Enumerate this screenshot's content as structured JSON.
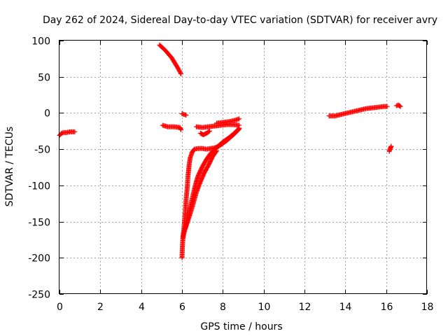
{
  "chart_data": {
    "type": "scatter",
    "title": "Day 262 of 2024, Sidereal Day-to-day VTEC variation (SDTVAR) for receiver avry",
    "xlabel": "GPS time / hours",
    "ylabel": "SDTVAR / TECUs",
    "xlim": [
      0,
      18
    ],
    "ylim": [
      -250,
      100
    ],
    "x_ticks": [
      "0",
      "2",
      "4",
      "6",
      "8",
      "10",
      "12",
      "14",
      "16",
      "18"
    ],
    "y_ticks": [
      "100",
      "50",
      "0",
      "-50",
      "-100",
      "-150",
      "-200",
      "-250"
    ],
    "grid": true,
    "legend": "none",
    "marker": "plus",
    "color": "#ff0000",
    "series": [
      {
        "segments": [
          [
            [
              0.0,
              -31
            ],
            [
              0.1,
              -28
            ],
            [
              0.2,
              -27
            ],
            [
              0.35,
              -27
            ],
            [
              0.5,
              -26
            ],
            [
              0.6,
              -26
            ],
            [
              0.75,
              -26
            ]
          ],
          [
            [
              4.9,
              94
            ],
            [
              5.2,
              86
            ],
            [
              5.5,
              76
            ],
            [
              5.8,
              62
            ],
            [
              5.95,
              54
            ]
          ],
          [
            [
              5.05,
              -17
            ],
            [
              5.3,
              -19
            ],
            [
              5.6,
              -19
            ],
            [
              5.9,
              -20
            ],
            [
              5.95,
              -23
            ]
          ],
          [
            [
              6.0,
              -1
            ],
            [
              6.1,
              -2
            ],
            [
              6.2,
              -3
            ]
          ],
          [
            [
              6.0,
              -200
            ],
            [
              6.02,
              -185
            ],
            [
              6.05,
              -170
            ],
            [
              6.1,
              -158
            ],
            [
              6.15,
              -140
            ],
            [
              6.2,
              -120
            ],
            [
              6.25,
              -105
            ],
            [
              6.3,
              -85
            ],
            [
              6.35,
              -72
            ],
            [
              6.4,
              -62
            ],
            [
              6.5,
              -54
            ],
            [
              6.6,
              -50
            ],
            [
              6.8,
              -49
            ],
            [
              7.0,
              -49
            ],
            [
              7.2,
              -50
            ],
            [
              7.4,
              -49
            ],
            [
              7.6,
              -48
            ],
            [
              7.8,
              -46
            ],
            [
              8.0,
              -42
            ],
            [
              8.2,
              -38
            ],
            [
              8.4,
              -33
            ],
            [
              8.6,
              -28
            ],
            [
              8.8,
              -22
            ]
          ],
          [
            [
              6.05,
              -172
            ],
            [
              6.1,
              -166
            ],
            [
              6.2,
              -155
            ],
            [
              6.3,
              -143
            ],
            [
              6.4,
              -130
            ],
            [
              6.5,
              -118
            ],
            [
              6.6,
              -106
            ],
            [
              6.7,
              -95
            ],
            [
              6.8,
              -86
            ],
            [
              7.0,
              -74
            ],
            [
              7.2,
              -64
            ],
            [
              7.4,
              -56
            ],
            [
              7.6,
              -50
            ],
            [
              7.8,
              -45
            ],
            [
              8.0,
              -40
            ],
            [
              8.3,
              -34
            ],
            [
              8.6,
              -27
            ],
            [
              8.8,
              -21
            ]
          ],
          [
            [
              6.15,
              -160
            ],
            [
              6.3,
              -148
            ],
            [
              6.5,
              -130
            ],
            [
              6.7,
              -110
            ],
            [
              6.9,
              -95
            ],
            [
              7.1,
              -82
            ],
            [
              7.3,
              -72
            ],
            [
              7.5,
              -60
            ],
            [
              7.7,
              -52
            ]
          ],
          [
            [
              6.7,
              -19
            ],
            [
              7.0,
              -20
            ],
            [
              7.3,
              -19
            ],
            [
              7.6,
              -18
            ],
            [
              7.9,
              -17
            ],
            [
              8.2,
              -16
            ],
            [
              8.5,
              -16
            ],
            [
              8.8,
              -17
            ]
          ],
          [
            [
              6.9,
              -28
            ],
            [
              7.05,
              -30
            ],
            [
              7.2,
              -28
            ],
            [
              7.35,
              -25
            ]
          ],
          [
            [
              7.7,
              -14
            ],
            [
              8.0,
              -13
            ],
            [
              8.3,
              -12
            ],
            [
              8.6,
              -10
            ],
            [
              8.8,
              -8
            ]
          ],
          [
            [
              13.2,
              -4
            ],
            [
              13.5,
              -4
            ],
            [
              13.8,
              -2
            ],
            [
              14.1,
              0
            ],
            [
              14.4,
              2
            ],
            [
              14.7,
              4
            ],
            [
              15.0,
              6
            ],
            [
              15.3,
              7
            ],
            [
              15.6,
              8
            ],
            [
              15.9,
              9
            ],
            [
              16.05,
              9
            ]
          ],
          [
            [
              16.5,
              10
            ],
            [
              16.6,
              11
            ],
            [
              16.7,
              9
            ]
          ],
          [
            [
              16.15,
              -53
            ],
            [
              16.2,
              -49
            ],
            [
              16.25,
              -46
            ]
          ]
        ]
      }
    ]
  }
}
